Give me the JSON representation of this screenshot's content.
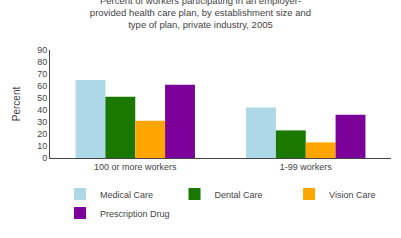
{
  "chart_data": {
    "type": "bar",
    "title": "Percent of workers participating in an employer-\nprovided health care plan, by establishment size and\ntype of plan, private industry, 2005",
    "categories": [
      "100 or more workers",
      "1-99 workers"
    ],
    "series": [
      {
        "name": "Medical Care",
        "values": [
          65,
          42
        ],
        "color": "#add8e6"
      },
      {
        "name": "Dental Care",
        "values": [
          51,
          23
        ],
        "color": "#1a7800"
      },
      {
        "name": "Vision Care",
        "values": [
          31,
          13
        ],
        "color": "#ffa500"
      },
      {
        "name": "Prescription Drug",
        "values": [
          61,
          36
        ],
        "color": "#7b0099"
      }
    ],
    "y_label": "Percent",
    "ylim": [
      0,
      90
    ],
    "yticks": [
      0,
      10,
      20,
      30,
      40,
      50,
      60,
      70,
      80,
      90
    ],
    "grid": false,
    "legend": "bottom"
  }
}
